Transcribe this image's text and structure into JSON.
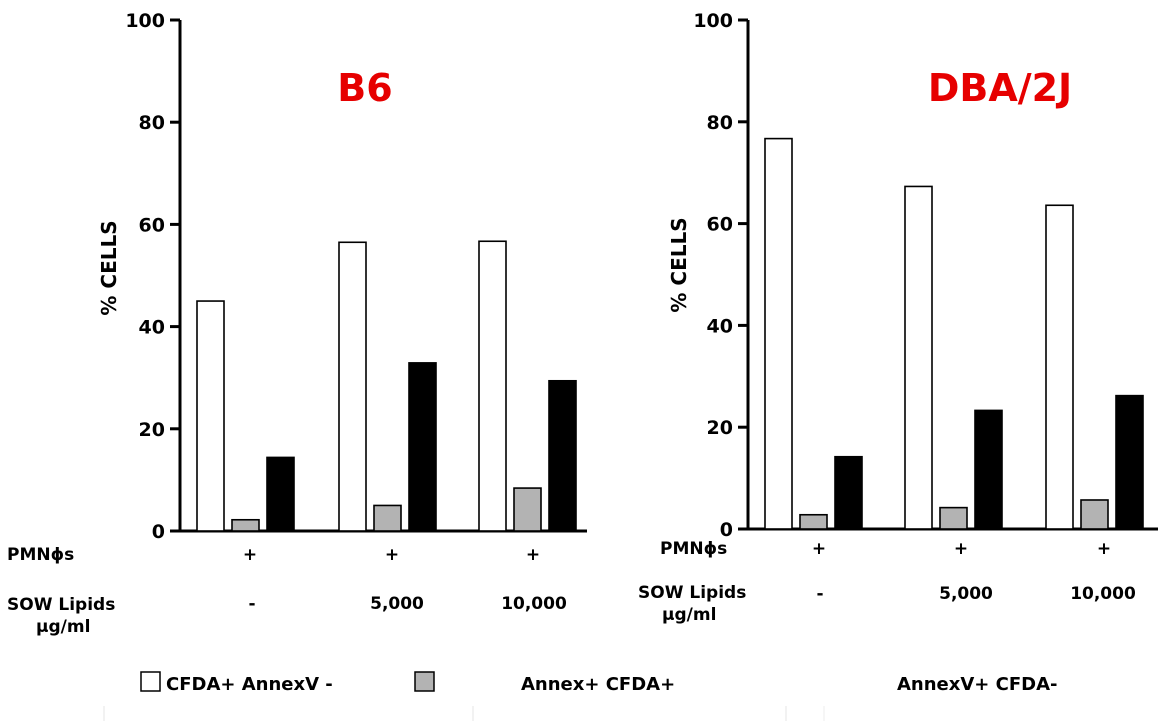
{
  "colors": {
    "title": "#e60000",
    "series": [
      "#ffffff",
      "#b3b3b3",
      "#000000"
    ],
    "axis": "#000000"
  },
  "row_labels": {
    "pmn": "PMNϕs",
    "sow_line1": "SOW Lipids",
    "sow_line2": "μg/ml"
  },
  "legend": [
    {
      "label": "CFDA+ AnnexV -",
      "color": "#ffffff"
    },
    {
      "label": "Annex+ CFDA+",
      "color": "#b3b3b3"
    },
    {
      "label": "AnnexV+ CFDA-",
      "color": "#000000"
    }
  ],
  "chart_data": [
    {
      "type": "bar",
      "title": "B6",
      "ylabel": "% CELLS",
      "ylim": [
        0,
        100
      ],
      "yticks": [
        "0",
        "20",
        "40",
        "60",
        "80",
        "100"
      ],
      "pmn": [
        "+",
        "+",
        "+"
      ],
      "sow_lipids": [
        "-",
        "5,000",
        "10,000"
      ],
      "series": [
        {
          "values": [
            45,
            56.5,
            56.7
          ]
        },
        {
          "values": [
            2.2,
            5,
            8.4
          ]
        },
        {
          "values": [
            14.4,
            32.9,
            29.4
          ]
        }
      ]
    },
    {
      "type": "bar",
      "title": "DBA/2J",
      "ylabel": "% CELLS",
      "ylim": [
        0,
        100
      ],
      "yticks": [
        "0",
        "20",
        "40",
        "60",
        "80",
        "100"
      ],
      "pmn": [
        "+",
        "+",
        "+"
      ],
      "sow_lipids": [
        "-",
        "5,000",
        "10,000"
      ],
      "series": [
        {
          "values": [
            76.7,
            67.3,
            63.6
          ]
        },
        {
          "values": [
            2.8,
            4.2,
            5.7
          ]
        },
        {
          "values": [
            14.2,
            23.3,
            26.2
          ]
        }
      ]
    }
  ]
}
